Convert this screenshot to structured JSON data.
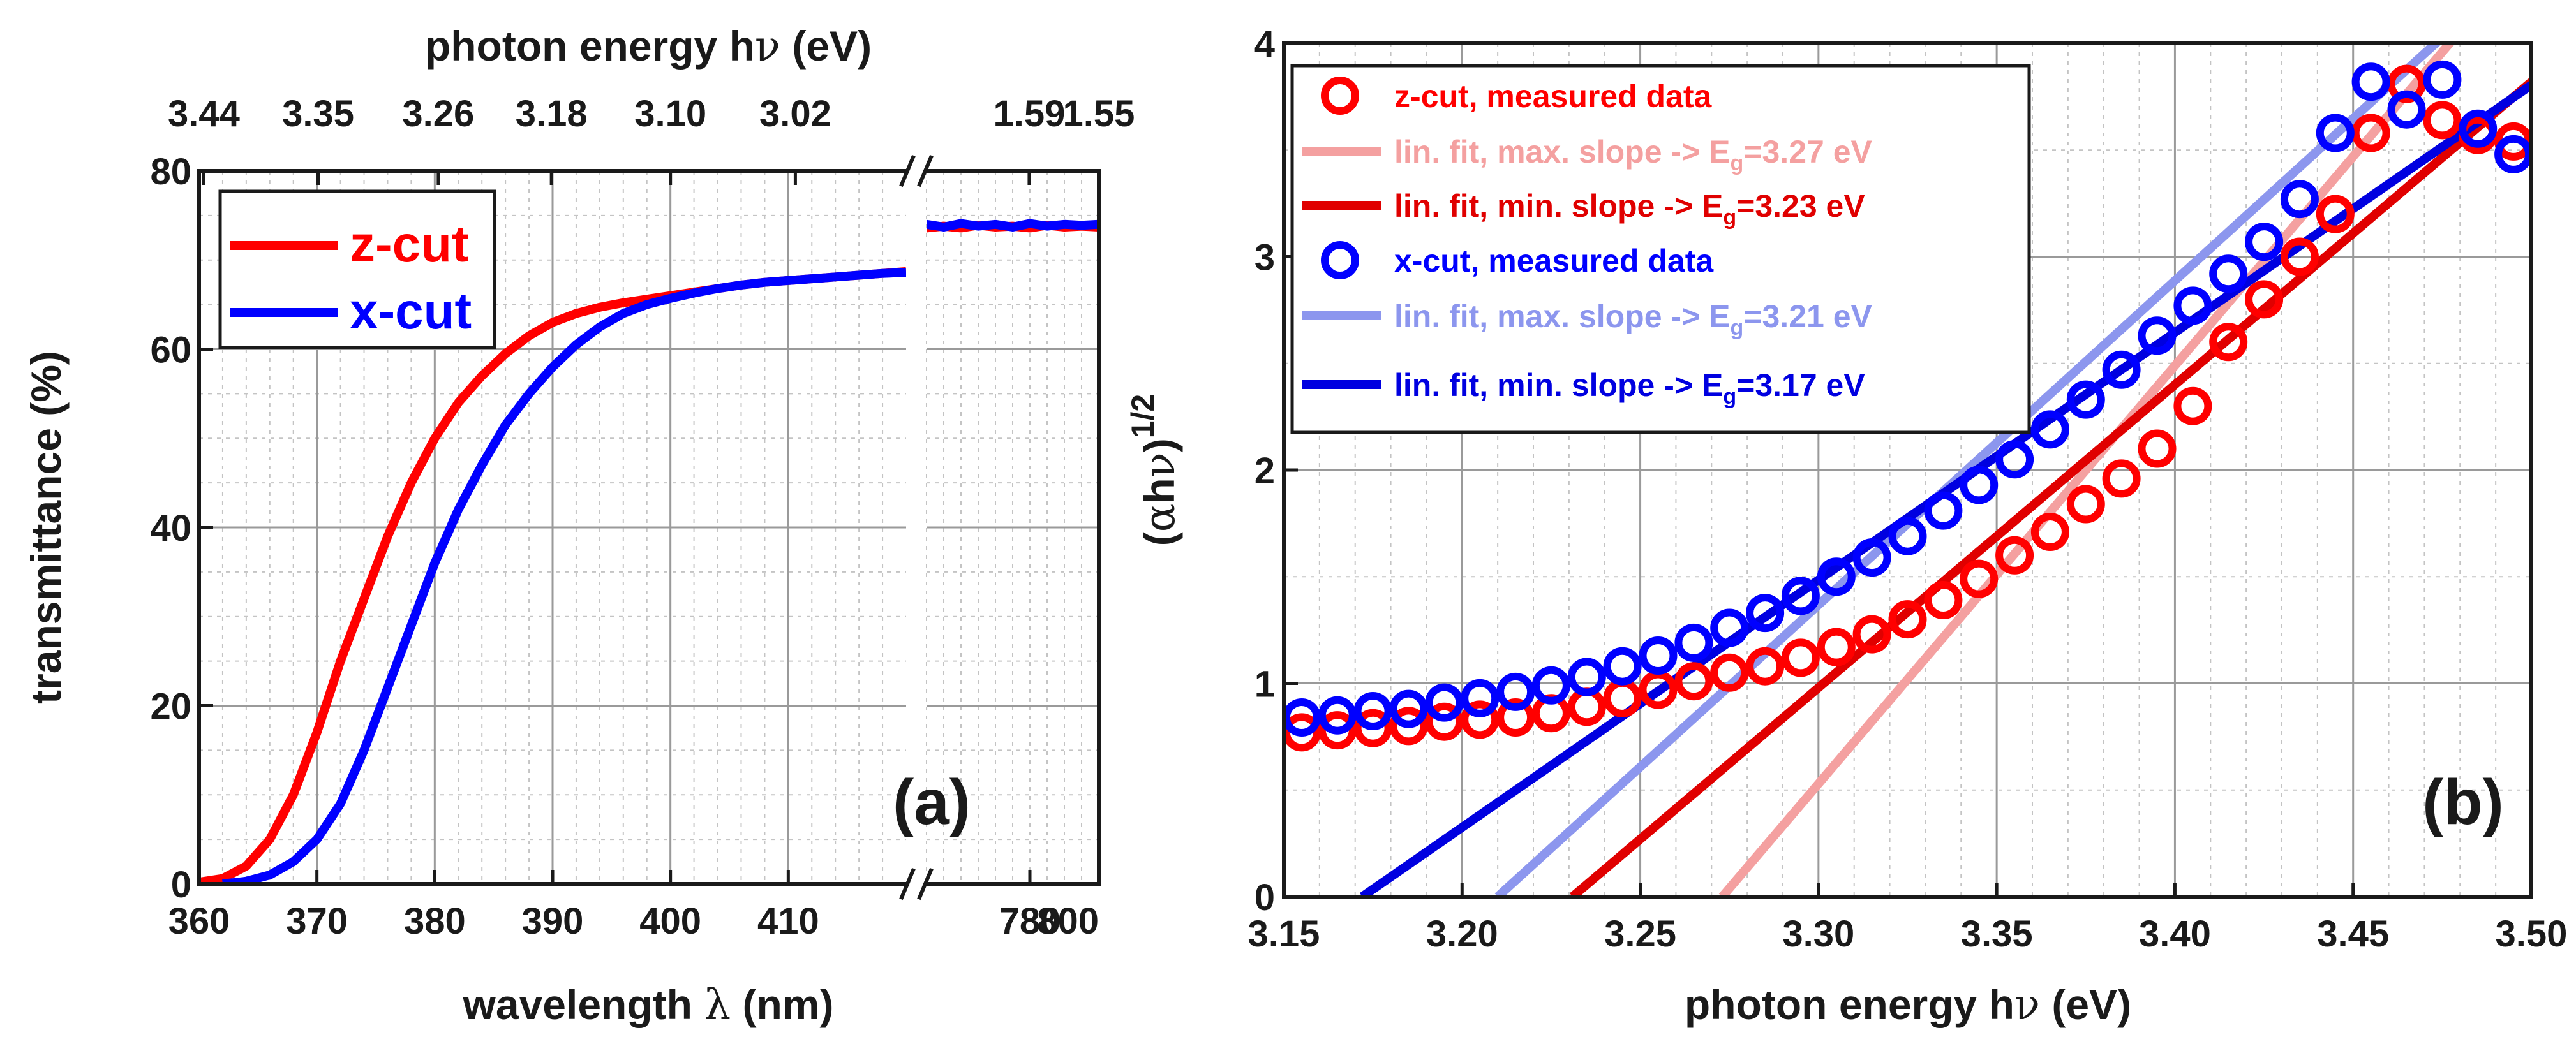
{
  "chart_data": [
    {
      "panel_label": "(a)",
      "type": "line",
      "xlabel_main": "wavelength ",
      "xlabel_symbol": "λ",
      "xlabel_unit": " (nm)",
      "ylabel": "transmittance (%)",
      "top_axis_title_main": "photon energy h",
      "top_axis_title_symbol": "ν",
      "top_axis_title_unit": " (eV)",
      "ylim": [
        0,
        80
      ],
      "x_segments": [
        {
          "xlim": [
            360,
            420
          ]
        },
        {
          "xlim": [
            750,
            800
          ]
        }
      ],
      "x_ticks_left": [
        "360",
        "370",
        "380",
        "390",
        "400",
        "410"
      ],
      "x_ticks_right": [
        "780",
        "800"
      ],
      "y_ticks": [
        "0",
        "20",
        "40",
        "60",
        "80"
      ],
      "top_ticks": [
        {
          "label": "3.44",
          "wavelength": 360.4
        },
        {
          "label": "3.35",
          "wavelength": 370.1
        },
        {
          "label": "3.26",
          "wavelength": 380.3
        },
        {
          "label": "3.18",
          "wavelength": 389.9
        },
        {
          "label": "3.10",
          "wavelength": 400.0
        },
        {
          "label": "3.02",
          "wavelength": 410.6
        },
        {
          "label": "1.59",
          "wavelength": 779.8
        },
        {
          "label": "1.55",
          "wavelength": 800.0
        }
      ],
      "grid": true,
      "legend_position": "top-left",
      "series": [
        {
          "name": "z-cut",
          "color": "#ff0000",
          "segment_left": {
            "x": [
              360,
              362,
              364,
              366,
              368,
              370,
              372,
              374,
              376,
              378,
              380,
              382,
              384,
              386,
              388,
              390,
              392,
              394,
              396,
              398,
              400,
              402,
              404,
              406,
              408,
              410,
              412,
              414,
              416,
              418,
              420
            ],
            "y": [
              0.2,
              0.6,
              2,
              5,
              10,
              17,
              25,
              32,
              39,
              45,
              50,
              54,
              57,
              59.5,
              61.5,
              63,
              64,
              64.7,
              65.2,
              65.6,
              66,
              66.4,
              66.8,
              67.2,
              67.5,
              67.7,
              67.9,
              68.1,
              68.3,
              68.5,
              68.7
            ]
          },
          "segment_right": {
            "x": [
              750,
              755,
              760,
              765,
              770,
              775,
              780,
              785,
              790,
              795,
              800
            ],
            "y": [
              73.6,
              73.8,
              73.6,
              73.9,
              73.7,
              73.8,
              73.6,
              73.9,
              73.7,
              73.8,
              73.7
            ]
          }
        },
        {
          "name": "x-cut",
          "color": "#0000ff",
          "segment_left": {
            "x": [
              362,
              364,
              366,
              368,
              370,
              372,
              374,
              376,
              378,
              380,
              382,
              384,
              386,
              388,
              390,
              392,
              394,
              396,
              398,
              400,
              402,
              404,
              406,
              408,
              410,
              412,
              414,
              416,
              418,
              420
            ],
            "y": [
              0,
              0.3,
              1,
              2.5,
              5,
              9,
              15,
              22,
              29,
              36,
              42,
              47,
              51.5,
              55,
              58,
              60.5,
              62.5,
              64,
              65,
              65.7,
              66.3,
              66.8,
              67.2,
              67.5,
              67.7,
              67.9,
              68.1,
              68.3,
              68.5,
              68.6
            ]
          },
          "segment_right": {
            "x": [
              750,
              755,
              760,
              765,
              770,
              775,
              780,
              785,
              790,
              795,
              800
            ],
            "y": [
              74.0,
              73.7,
              74.1,
              73.8,
              74.0,
              73.7,
              74.1,
              73.8,
              74.0,
              73.9,
              74.0
            ]
          }
        }
      ]
    },
    {
      "panel_label": "(b)",
      "type": "scatter",
      "xlabel_main": "photon energy h",
      "xlabel_symbol": "ν",
      "xlabel_unit": " (eV)",
      "ylabel_paren_open": "(",
      "ylabel_alpha": "α",
      "ylabel_h": "h",
      "ylabel_nu": "ν",
      "ylabel_paren_close": ")",
      "ylabel_exp": "1/2",
      "xlim": [
        3.15,
        3.5
      ],
      "ylim": [
        0,
        4
      ],
      "x_ticks": [
        "3.15",
        "3.20",
        "3.25",
        "3.30",
        "3.35",
        "3.40",
        "3.45",
        "3.50"
      ],
      "y_ticks": [
        "0",
        "1",
        "2",
        "3",
        "4"
      ],
      "grid": true,
      "legend_position": "top-left",
      "measured": [
        {
          "name": "z-cut, measured data",
          "color": "#ff0000",
          "x": [
            3.155,
            3.165,
            3.175,
            3.185,
            3.195,
            3.205,
            3.215,
            3.225,
            3.235,
            3.245,
            3.255,
            3.265,
            3.275,
            3.285,
            3.295,
            3.305,
            3.315,
            3.325,
            3.335,
            3.345,
            3.355,
            3.365,
            3.375,
            3.385,
            3.395,
            3.405,
            3.415,
            3.425,
            3.435,
            3.445,
            3.455,
            3.465,
            3.475,
            3.485,
            3.495
          ],
          "y": [
            0.77,
            0.78,
            0.79,
            0.8,
            0.82,
            0.83,
            0.84,
            0.86,
            0.89,
            0.93,
            0.97,
            1.01,
            1.05,
            1.08,
            1.12,
            1.17,
            1.23,
            1.3,
            1.39,
            1.49,
            1.6,
            1.71,
            1.84,
            1.96,
            2.1,
            2.3,
            2.6,
            2.8,
            3.0,
            3.2,
            3.58,
            3.81,
            3.64,
            3.57,
            3.54
          ]
        },
        {
          "name": "x-cut, measured data",
          "color": "#0000ff",
          "x": [
            3.155,
            3.165,
            3.175,
            3.185,
            3.195,
            3.205,
            3.215,
            3.225,
            3.235,
            3.245,
            3.255,
            3.265,
            3.275,
            3.285,
            3.295,
            3.305,
            3.315,
            3.325,
            3.335,
            3.345,
            3.355,
            3.365,
            3.375,
            3.385,
            3.395,
            3.405,
            3.415,
            3.425,
            3.435,
            3.445,
            3.455,
            3.465,
            3.475,
            3.485,
            3.495
          ],
          "y": [
            0.84,
            0.85,
            0.87,
            0.88,
            0.91,
            0.93,
            0.96,
            0.99,
            1.03,
            1.08,
            1.13,
            1.19,
            1.26,
            1.33,
            1.41,
            1.5,
            1.59,
            1.69,
            1.81,
            1.93,
            2.05,
            2.19,
            2.33,
            2.47,
            2.63,
            2.77,
            2.92,
            3.07,
            3.27,
            3.58,
            3.82,
            3.69,
            3.83,
            3.6,
            3.48
          ]
        }
      ],
      "fits": [
        {
          "name_prefix": "lin. fit, max. slope -> E",
          "subscript": "g",
          "name_suffix": "=3.27 eV",
          "color": "#f4a0a0",
          "x0": 3.273,
          "slope": 19.6
        },
        {
          "name_prefix": "lin. fit, min. slope -> E",
          "subscript": "g",
          "name_suffix": "=3.23 eV",
          "color": "#e00000",
          "x0": 3.231,
          "slope": 14.2
        },
        {
          "name_prefix": "lin. fit, max. slope -> E",
          "subscript": "g",
          "name_suffix": "=3.21 eV",
          "color": "#8c96ee",
          "x0": 3.21,
          "slope": 15.2
        },
        {
          "name_prefix": "lin. fit, min. slope -> E",
          "subscript": "g",
          "name_suffix": "=3.17 eV",
          "color": "#0000e0",
          "x0": 3.172,
          "slope": 11.6
        }
      ]
    }
  ]
}
